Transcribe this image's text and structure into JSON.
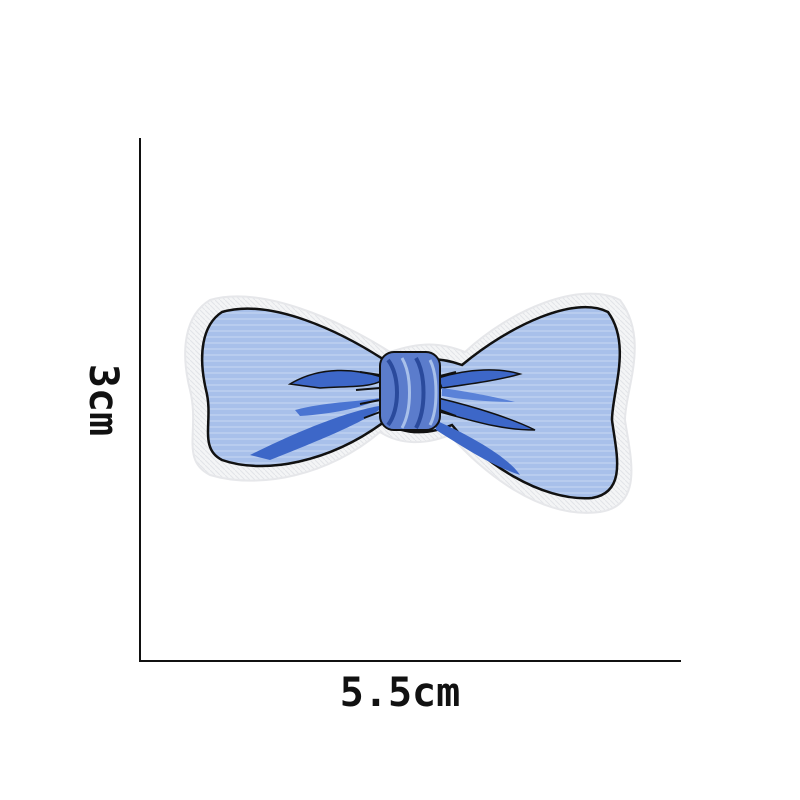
{
  "dimensions": {
    "height_label": "3cm",
    "width_label": "5.5cm"
  },
  "product": {
    "icon": "bow-patch-icon",
    "colors": {
      "border": "#f4f5f6",
      "fill_light": "#a8c0ea",
      "ribbon": "#3d67c8",
      "ribbon_dark": "#2a4a9c",
      "outline": "#111111",
      "knot": "#5b7ccc"
    }
  }
}
